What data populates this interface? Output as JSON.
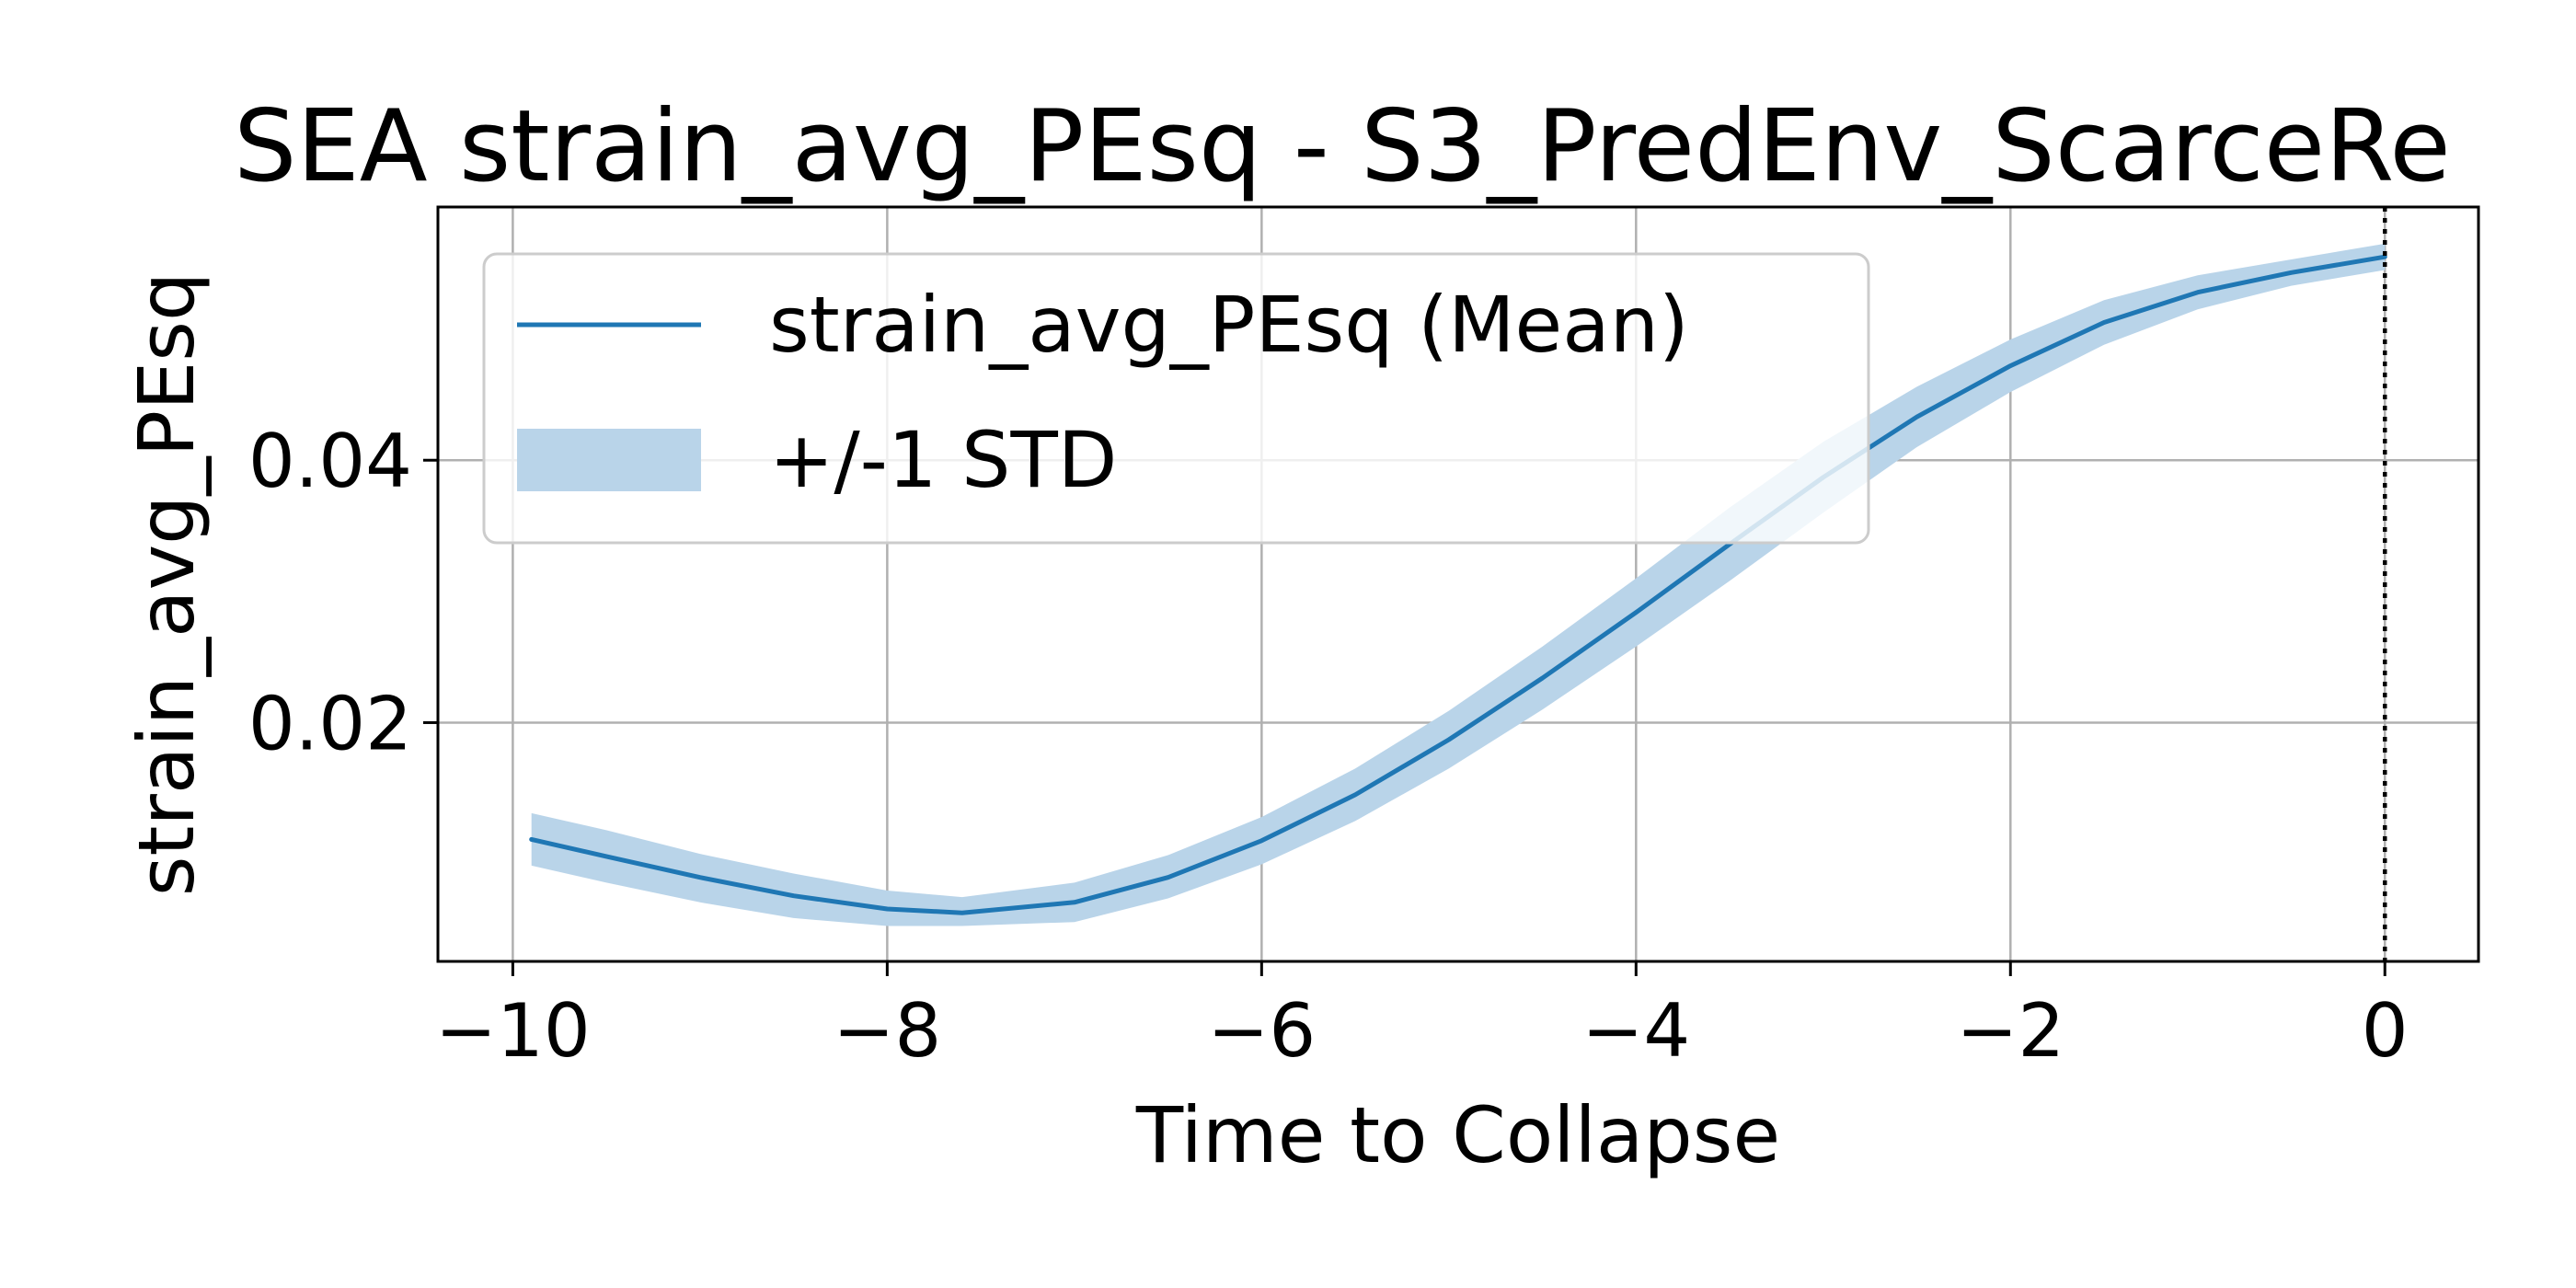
{
  "chart_data": {
    "type": "line",
    "title": "SEA strain_avg_PEsq - S3_PredEnv_ScarceRe",
    "xlabel": "Time to Collapse",
    "ylabel": "strain_avg_PEsq",
    "xlim": [
      -10.4,
      0.5
    ],
    "ylim": [
      0.0018,
      0.0593
    ],
    "x_ticks": [
      -10,
      -8,
      -6,
      -4,
      -2,
      0
    ],
    "x_tick_labels": [
      "−10",
      "−8",
      "−6",
      "−4",
      "−2",
      "0"
    ],
    "y_ticks": [
      0.02,
      0.04
    ],
    "y_tick_labels": [
      "0.02",
      "0.04"
    ],
    "grid": true,
    "legend_position": "upper-left",
    "vline": {
      "x": 0,
      "style": "dotted",
      "color": "#000000"
    },
    "colors": {
      "mean_line": "#1f77b4",
      "std_band": "#b9d4e9"
    },
    "x": [
      -9.9,
      -9.5,
      -9.0,
      -8.5,
      -8.0,
      -7.6,
      -7.0,
      -6.5,
      -6.0,
      -5.5,
      -5.0,
      -4.5,
      -4.0,
      -3.5,
      -3.0,
      -2.5,
      -2.0,
      -1.5,
      -1.0,
      -0.5,
      0.0
    ],
    "series": [
      {
        "name": "strain_avg_PEsq (Mean)",
        "values": [
          0.0111,
          0.0098,
          0.0082,
          0.0068,
          0.0058,
          0.0055,
          0.0063,
          0.0082,
          0.011,
          0.0145,
          0.0187,
          0.0234,
          0.0284,
          0.0336,
          0.0387,
          0.0433,
          0.0472,
          0.0505,
          0.0528,
          0.0543,
          0.0555
        ]
      }
    ],
    "std_band": {
      "name": "+/-1 STD",
      "lower": [
        0.0091,
        0.0078,
        0.0063,
        0.0051,
        0.0045,
        0.0045,
        0.0048,
        0.0066,
        0.0092,
        0.0125,
        0.0165,
        0.021,
        0.0258,
        0.0308,
        0.036,
        0.041,
        0.0452,
        0.0488,
        0.0515,
        0.0533,
        0.0545
      ],
      "upper": [
        0.0131,
        0.0118,
        0.01,
        0.0085,
        0.0072,
        0.0067,
        0.0078,
        0.0099,
        0.0128,
        0.0165,
        0.0209,
        0.0258,
        0.031,
        0.0364,
        0.0414,
        0.0456,
        0.0492,
        0.0522,
        0.0541,
        0.0553,
        0.0565
      ]
    }
  }
}
